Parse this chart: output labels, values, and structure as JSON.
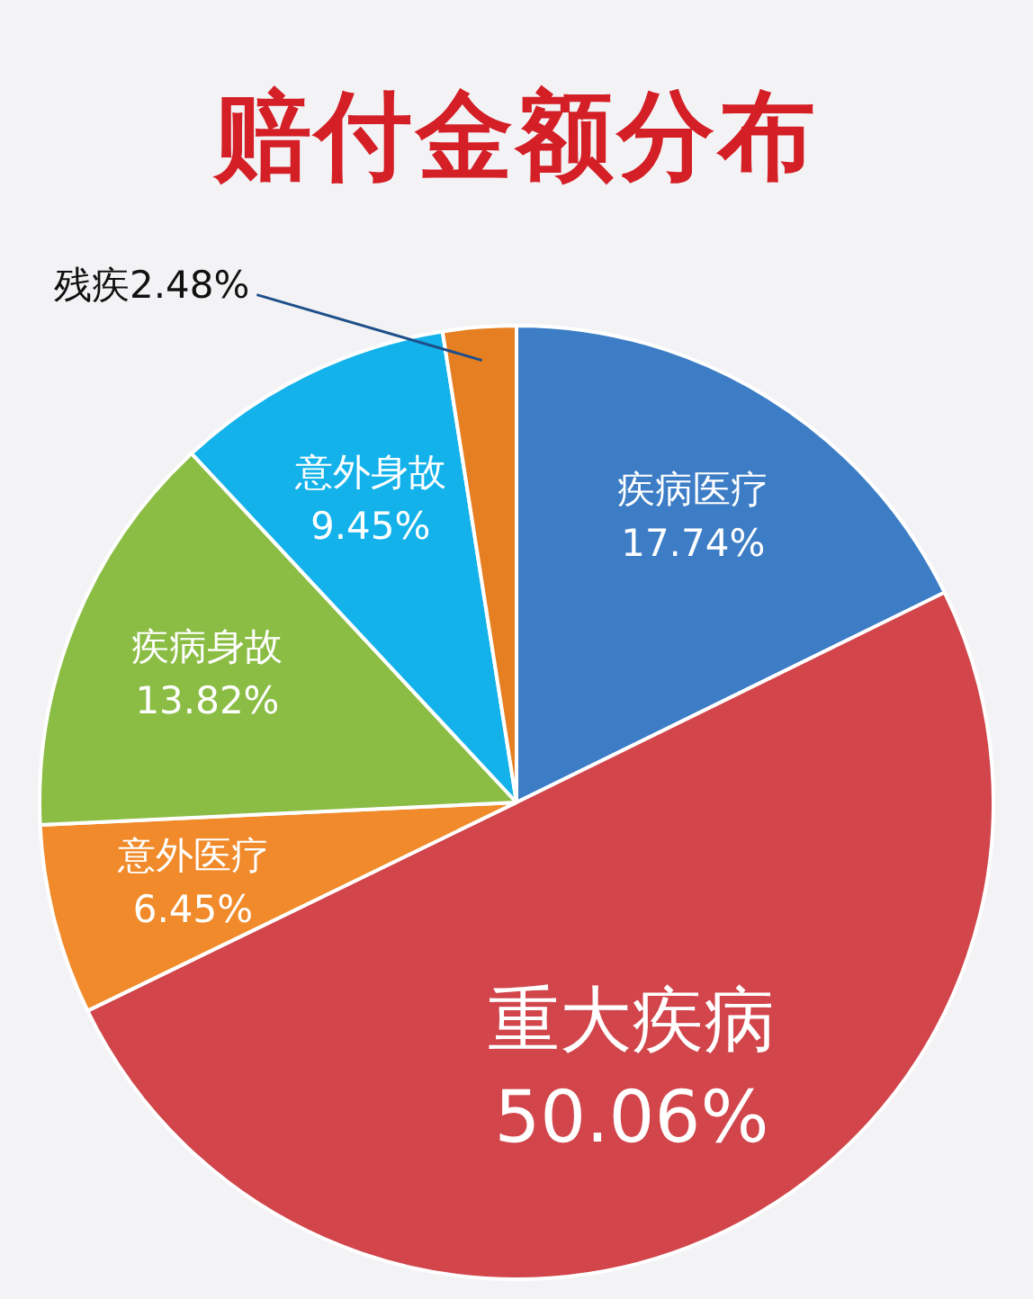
{
  "chart_data": {
    "type": "pie",
    "title": "赔付金额分布",
    "categories": [
      "疾病医疗",
      "重大疾病",
      "意外医疗",
      "疾病身故",
      "意外身故",
      "残疾"
    ],
    "values": [
      17.74,
      50.06,
      6.45,
      13.82,
      9.45,
      2.48
    ],
    "value_labels": [
      "17.74%",
      "50.06%",
      "6.45%",
      "13.82%",
      "9.45%",
      "2.48%"
    ],
    "colors": [
      "#3d7dc6",
      "#d1454b",
      "#f08a2a",
      "#8bbd45",
      "#14b2ea",
      "#e67f22"
    ],
    "legend": false
  }
}
